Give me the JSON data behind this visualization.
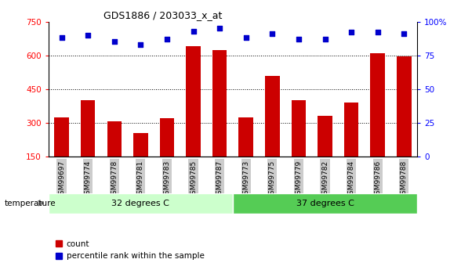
{
  "title": "GDS1886 / 203033_x_at",
  "samples": [
    "GSM99697",
    "GSM99774",
    "GSM99778",
    "GSM99781",
    "GSM99783",
    "GSM99785",
    "GSM99787",
    "GSM99773",
    "GSM99775",
    "GSM99779",
    "GSM99782",
    "GSM99784",
    "GSM99786",
    "GSM99788"
  ],
  "counts": [
    325,
    400,
    308,
    255,
    320,
    640,
    625,
    325,
    510,
    400,
    330,
    390,
    610,
    595
  ],
  "percentiles": [
    88,
    90,
    85,
    83,
    87,
    93,
    95,
    88,
    91,
    87,
    87,
    92,
    92,
    91
  ],
  "group1_label": "32 degrees C",
  "group2_label": "37 degrees C",
  "group1_count": 7,
  "group2_count": 7,
  "factor_label": "temperature",
  "ylim_left": [
    150,
    750
  ],
  "ylim_right": [
    0,
    100
  ],
  "yticks_left": [
    150,
    300,
    450,
    600,
    750
  ],
  "yticks_right": [
    0,
    25,
    50,
    75,
    100
  ],
  "bar_color": "#cc0000",
  "dot_color": "#0000cc",
  "group1_bg": "#ccffcc",
  "group2_bg": "#55cc55",
  "tick_bg": "#cccccc",
  "legend_count_label": "count",
  "legend_pct_label": "percentile rank within the sample",
  "fig_width": 5.88,
  "fig_height": 3.45,
  "dpi": 100
}
